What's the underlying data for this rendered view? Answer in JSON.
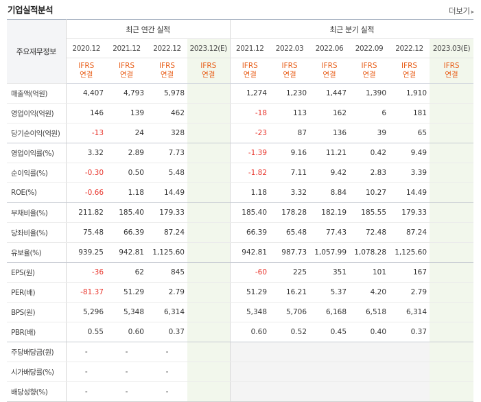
{
  "title": "기업실적분석",
  "more_label": "더보기",
  "row_header": "주요재무정보",
  "annual_header": "최근 연간 실적",
  "quarter_header": "최근 분기 실적",
  "annual_periods": [
    "2020.12",
    "2021.12",
    "2022.12",
    "2023.12(E)"
  ],
  "quarter_periods": [
    "2021.12",
    "2022.03",
    "2022.06",
    "2022.09",
    "2022.12",
    "2023.03(E)"
  ],
  "basis_top": "IFRS",
  "basis_bottom": "연결",
  "rows": [
    {
      "label": "매출액(억원)",
      "annual": [
        "4,407",
        "4,793",
        "5,978",
        ""
      ],
      "quarter": [
        "1,274",
        "1,230",
        "1,447",
        "1,390",
        "1,910",
        ""
      ]
    },
    {
      "label": "영업이익(억원)",
      "annual": [
        "146",
        "139",
        "462",
        ""
      ],
      "quarter": [
        "-18",
        "113",
        "162",
        "6",
        "181",
        ""
      ]
    },
    {
      "label": "당기순이익(억원)",
      "annual": [
        "-13",
        "24",
        "328",
        ""
      ],
      "quarter": [
        "-23",
        "87",
        "136",
        "39",
        "65",
        ""
      ]
    },
    {
      "label": "영업이익률(%)",
      "annual": [
        "3.32",
        "2.89",
        "7.73",
        ""
      ],
      "quarter": [
        "-1.39",
        "9.16",
        "11.21",
        "0.42",
        "9.49",
        ""
      ]
    },
    {
      "label": "순이익률(%)",
      "annual": [
        "-0.30",
        "0.50",
        "5.48",
        ""
      ],
      "quarter": [
        "-1.82",
        "7.11",
        "9.42",
        "2.83",
        "3.39",
        ""
      ]
    },
    {
      "label": "ROE(%)",
      "annual": [
        "-0.66",
        "1.18",
        "14.49",
        ""
      ],
      "quarter": [
        "1.18",
        "3.32",
        "8.84",
        "10.27",
        "14.49",
        ""
      ]
    },
    {
      "label": "부채비율(%)",
      "annual": [
        "211.82",
        "185.40",
        "179.33",
        ""
      ],
      "quarter": [
        "185.40",
        "178.28",
        "182.19",
        "185.55",
        "179.33",
        ""
      ]
    },
    {
      "label": "당좌비율(%)",
      "annual": [
        "75.48",
        "66.39",
        "87.24",
        ""
      ],
      "quarter": [
        "66.39",
        "65.48",
        "77.43",
        "72.48",
        "87.24",
        ""
      ]
    },
    {
      "label": "유보율(%)",
      "annual": [
        "939.25",
        "942.81",
        "1,125.60",
        ""
      ],
      "quarter": [
        "942.81",
        "987.73",
        "1,057.99",
        "1,078.28",
        "1,125.60",
        ""
      ]
    },
    {
      "label": "EPS(원)",
      "annual": [
        "-36",
        "62",
        "845",
        ""
      ],
      "quarter": [
        "-60",
        "225",
        "351",
        "101",
        "167",
        ""
      ]
    },
    {
      "label": "PER(배)",
      "annual": [
        "-81.37",
        "51.29",
        "2.79",
        ""
      ],
      "quarter": [
        "51.29",
        "16.21",
        "5.37",
        "4.20",
        "2.79",
        ""
      ]
    },
    {
      "label": "BPS(원)",
      "annual": [
        "5,296",
        "5,348",
        "6,314",
        ""
      ],
      "quarter": [
        "5,348",
        "5,706",
        "6,168",
        "6,518",
        "6,314",
        ""
      ]
    },
    {
      "label": "PBR(배)",
      "annual": [
        "0.55",
        "0.60",
        "0.37",
        ""
      ],
      "quarter": [
        "0.60",
        "0.52",
        "0.45",
        "0.40",
        "0.37",
        ""
      ]
    },
    {
      "label": "주당배당금(원)",
      "annual": [
        "-",
        "-",
        "-",
        ""
      ],
      "quarter": [
        "",
        "",
        "",
        "",
        "",
        ""
      ]
    },
    {
      "label": "시가배당률(%)",
      "annual": [
        "-",
        "-",
        "-",
        ""
      ],
      "quarter": [
        "",
        "",
        "",
        "",
        "",
        ""
      ]
    },
    {
      "label": "배당성향(%)",
      "annual": [
        "-",
        "-",
        "-",
        ""
      ],
      "quarter": [
        "",
        "",
        "",
        "",
        "",
        ""
      ]
    }
  ],
  "colors": {
    "negative": "#e8332a",
    "ifrs": "#e8601c",
    "estimate": "#4a9a3a",
    "estimate_bg": "#f2f7ec"
  }
}
